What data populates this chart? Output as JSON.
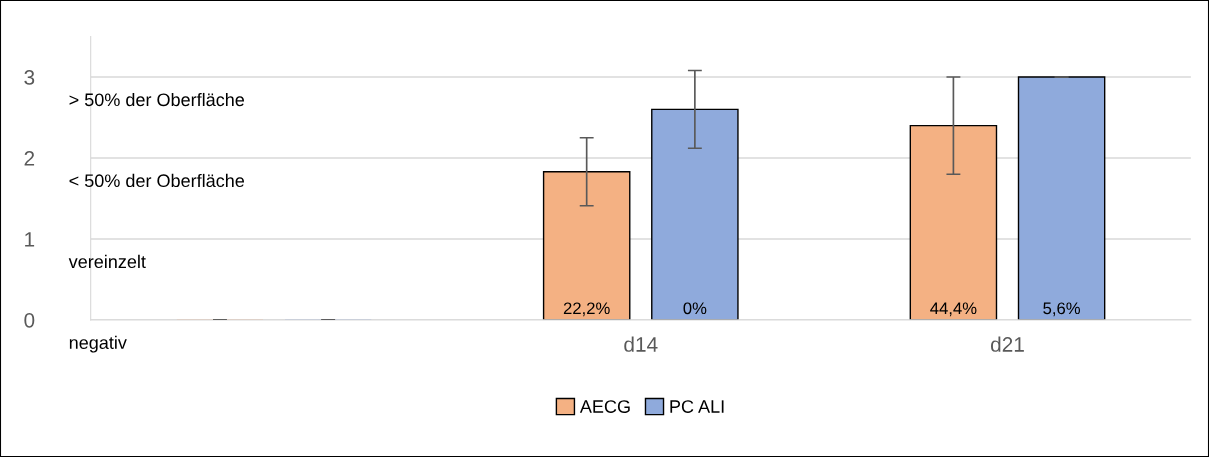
{
  "chart_data": {
    "type": "bar",
    "categories": [
      null,
      "d14",
      "d21"
    ],
    "series": [
      {
        "name": "AECG",
        "color": "#f4b183",
        "values": [
          0,
          1.83,
          2.4
        ],
        "errors": [
          0,
          0.42,
          0.6
        ]
      },
      {
        "name": "PC ALI",
        "color": "#8faadc",
        "values": [
          0,
          2.6,
          3.0
        ],
        "errors": [
          0,
          0.48,
          0
        ]
      }
    ],
    "ylim": [
      0,
      3.5
    ],
    "yticks": [
      0,
      1,
      2,
      3
    ],
    "grid": "y",
    "legend": "bottom",
    "annotations": [
      "> 50% der Oberfläche",
      "< 50% der Oberfläche",
      "vereinzelt",
      "negativ",
      "22,2%",
      "0%",
      "44,4%",
      "5,6%"
    ]
  }
}
